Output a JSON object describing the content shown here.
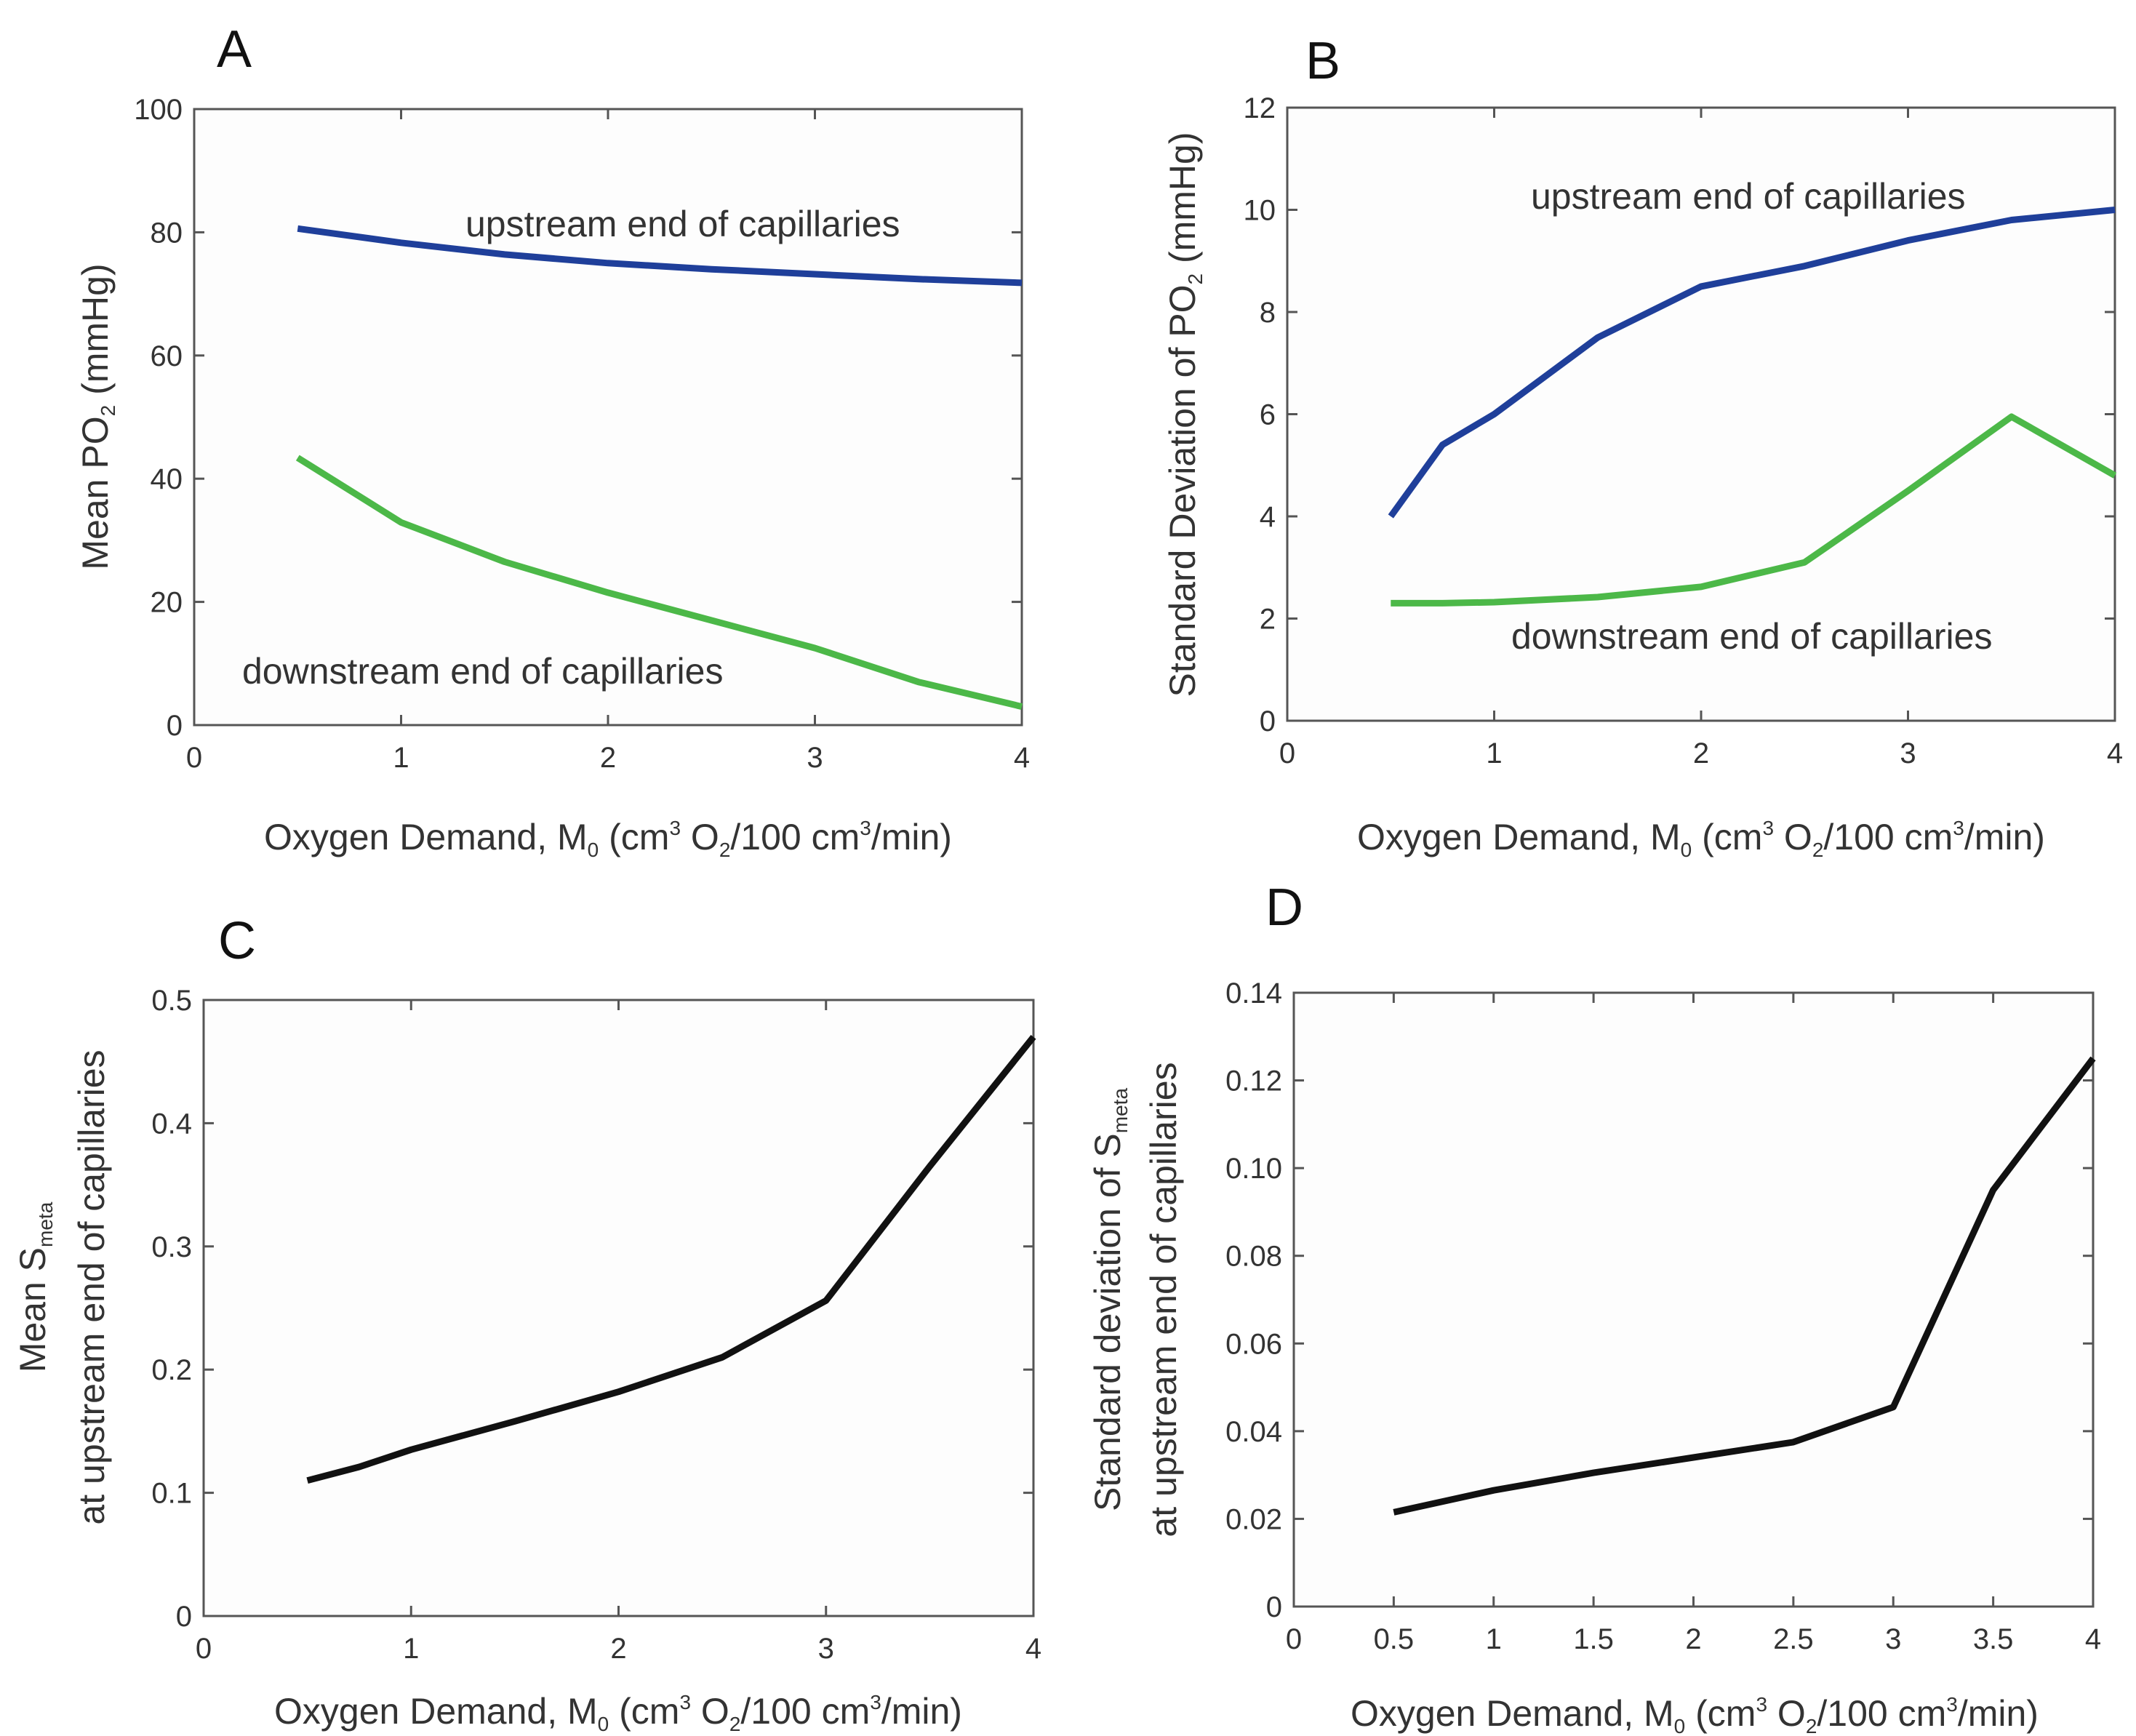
{
  "colors": {
    "upstream": "#1f3f9a",
    "downstream": "#4cb848",
    "black": "#111111"
  },
  "chart_data": [
    {
      "panel": "A",
      "type": "line",
      "xlim": [
        0,
        4
      ],
      "ylim": [
        0,
        100
      ],
      "xticks": [
        0,
        1,
        2,
        3,
        4
      ],
      "yticks": [
        0,
        20,
        40,
        60,
        80,
        100
      ],
      "xtick_labels": [
        "0",
        "1",
        "2",
        "3",
        "4"
      ],
      "ytick_labels": [
        "0",
        "20",
        "40",
        "60",
        "80",
        "100"
      ],
      "xlabel": {
        "main": "Oxygen Demand, M",
        "sub": "0",
        "unit_a": " (cm",
        "sup1": "3",
        "unit_b": " O",
        "sub2": "2",
        "unit_c": "/100 cm",
        "sup2": "3",
        "unit_d": "/min)"
      },
      "ylabel": {
        "main": "Mean PO",
        "sub": "2",
        "unit": " (mmHg)"
      },
      "series": [
        {
          "name": "upstream end of capillaries",
          "color": "#1f3f9a",
          "x": [
            0.5,
            1,
            1.5,
            2,
            2.5,
            3,
            3.5,
            4
          ],
          "y": [
            80.6,
            78.3,
            76.4,
            75,
            74,
            73.2,
            72.4,
            71.8
          ]
        },
        {
          "name": "downstream end of capillaries",
          "color": "#4cb848",
          "x": [
            0.5,
            1,
            1.5,
            2,
            2.5,
            3,
            3.5,
            4
          ],
          "y": [
            43.4,
            32.9,
            26.5,
            21.5,
            17,
            12.5,
            7,
            3
          ]
        }
      ],
      "annotations": [
        {
          "text": "upstream end of capillaries",
          "color": "#1f3f9a"
        },
        {
          "text": "downstream end of capillaries",
          "color": "#4cb848"
        }
      ]
    },
    {
      "panel": "B",
      "type": "line",
      "xlim": [
        0,
        4
      ],
      "ylim": [
        0,
        12
      ],
      "xticks": [
        0,
        1,
        2,
        3,
        4
      ],
      "yticks": [
        0,
        2,
        4,
        6,
        8,
        10,
        12
      ],
      "xtick_labels": [
        "0",
        "1",
        "2",
        "3",
        "4"
      ],
      "ytick_labels": [
        "0",
        "2",
        "4",
        "6",
        "8",
        "10",
        "12"
      ],
      "xlabel": {
        "main": "Oxygen Demand, M",
        "sub": "0",
        "unit_a": " (cm",
        "sup1": "3",
        "unit_b": " O",
        "sub2": "2",
        "unit_c": "/100 cm",
        "sup2": "3",
        "unit_d": "/min)"
      },
      "ylabel": {
        "main": "Standard Deviation of PO",
        "sub": "2",
        "unit": " (mmHg)"
      },
      "series": [
        {
          "name": "upstream end of capillaries",
          "color": "#1f3f9a",
          "x": [
            0.5,
            0.75,
            1,
            1.5,
            2,
            2.5,
            3,
            3.5,
            4
          ],
          "y": [
            4,
            5.4,
            6,
            7.5,
            8.5,
            8.9,
            9.4,
            9.8,
            10
          ]
        },
        {
          "name": "downstream end of capillaries",
          "color": "#4cb848",
          "x": [
            0.5,
            0.75,
            1,
            1.5,
            2,
            2.5,
            3,
            3.5,
            4
          ],
          "y": [
            2.3,
            2.3,
            2.32,
            2.42,
            2.62,
            3.1,
            4.5,
            5.95,
            4.8
          ]
        }
      ],
      "annotations": [
        {
          "text": "upstream end of capillaries",
          "color": "#1f3f9a"
        },
        {
          "text": "downstream end of capillaries",
          "color": "#4cb848"
        }
      ]
    },
    {
      "panel": "C",
      "type": "line",
      "xlim": [
        0,
        4
      ],
      "ylim": [
        0,
        0.5
      ],
      "xticks": [
        0,
        1,
        2,
        3,
        4
      ],
      "yticks": [
        0,
        0.1,
        0.2,
        0.3,
        0.4,
        0.5
      ],
      "xtick_labels": [
        "0",
        "1",
        "2",
        "3",
        "4"
      ],
      "ytick_labels": [
        "0",
        "0.1",
        "0.2",
        "0.3",
        "0.4",
        "0.5"
      ],
      "xlabel": {
        "main": "Oxygen Demand, M",
        "sub": "0",
        "unit_a": " (cm",
        "sup1": "3",
        "unit_b": " O",
        "sub2": "2",
        "unit_c": "/100 cm",
        "sup2": "3",
        "unit_d": "/min)"
      },
      "ylabel": {
        "line1_main": "Mean S",
        "line1_sub": "meta",
        "line2": "at upstream end of capillaries"
      },
      "series": [
        {
          "name": "mean S_meta",
          "color": "#111111",
          "x": [
            0.5,
            0.75,
            1,
            1.5,
            2,
            2.5,
            3,
            3.5,
            4
          ],
          "y": [
            0.11,
            0.121,
            0.135,
            0.158,
            0.182,
            0.21,
            0.256,
            0.365,
            0.47
          ]
        }
      ]
    },
    {
      "panel": "D",
      "type": "line",
      "xlim": [
        0,
        4
      ],
      "ylim": [
        0,
        0.14
      ],
      "xticks": [
        0,
        0.5,
        1,
        1.5,
        2,
        2.5,
        3,
        3.5,
        4
      ],
      "yticks": [
        0,
        0.02,
        0.04,
        0.06,
        0.08,
        0.1,
        0.12,
        0.14
      ],
      "xtick_labels": [
        "0",
        "0.5",
        "1",
        "1.5",
        "2",
        "2.5",
        "3",
        "3.5",
        "4"
      ],
      "ytick_labels": [
        "0",
        "0.02",
        "0.04",
        "0.06",
        "0.08",
        "0.10",
        "0.12",
        "0.14"
      ],
      "xlabel": {
        "main": "Oxygen Demand, M",
        "sub": "0",
        "unit_a": " (cm",
        "sup1": "3",
        "unit_b": " O",
        "sub2": "2",
        "unit_c": "/100 cm",
        "sup2": "3",
        "unit_d": "/min)"
      },
      "ylabel": {
        "line1_main": "Standard deviation of S",
        "line1_sub": "meta",
        "line2": "at upstream end of capillaries"
      },
      "series": [
        {
          "name": "standard deviation of S_meta",
          "color": "#111111",
          "x": [
            0.5,
            1,
            1.5,
            2,
            2.5,
            3,
            3.5,
            4
          ],
          "y": [
            0.0215,
            0.0265,
            0.0305,
            0.034,
            0.0375,
            0.0455,
            0.095,
            0.125
          ]
        }
      ]
    }
  ]
}
